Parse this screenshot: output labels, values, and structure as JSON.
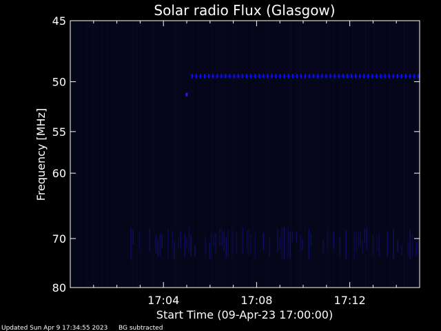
{
  "chart_data": {
    "type": "heatmap",
    "title": "Solar radio Flux (Glasgow)",
    "ylabel": "Frequency [MHz]",
    "xlabel": "Start Time (09-Apr-23 17:00:00)",
    "y_ticks": [
      45,
      50,
      55,
      60,
      70,
      80
    ],
    "ylim": [
      80,
      45
    ],
    "x_ticks": [
      "17:04",
      "17:08",
      "17:12"
    ],
    "x_tick_minutes": [
      4,
      8,
      12
    ],
    "xlim_minutes": [
      0,
      15
    ],
    "grid": false,
    "features": [
      {
        "kind": "horizontal-band",
        "frequency_mhz": 49.5,
        "time_start_minutes": 5.2,
        "time_end_minutes": 15,
        "color": "#1010ff"
      },
      {
        "kind": "blob",
        "frequency_mhz": 51.2,
        "time_minutes": 5.0,
        "color": "#2020ff"
      },
      {
        "kind": "speckle-region",
        "frequency_range_mhz": [
          68,
          74
        ],
        "time_start_minutes": 2.5,
        "time_end_minutes": 15,
        "color": "#10107a"
      }
    ],
    "colors": {
      "background": "#000000",
      "field": "#05051a",
      "signal": "#1a1aff",
      "text": "#ffffff"
    }
  },
  "footer": {
    "updated": "Updated Sun Apr  9 17:34:55 2023",
    "note": "BG subtracted"
  }
}
